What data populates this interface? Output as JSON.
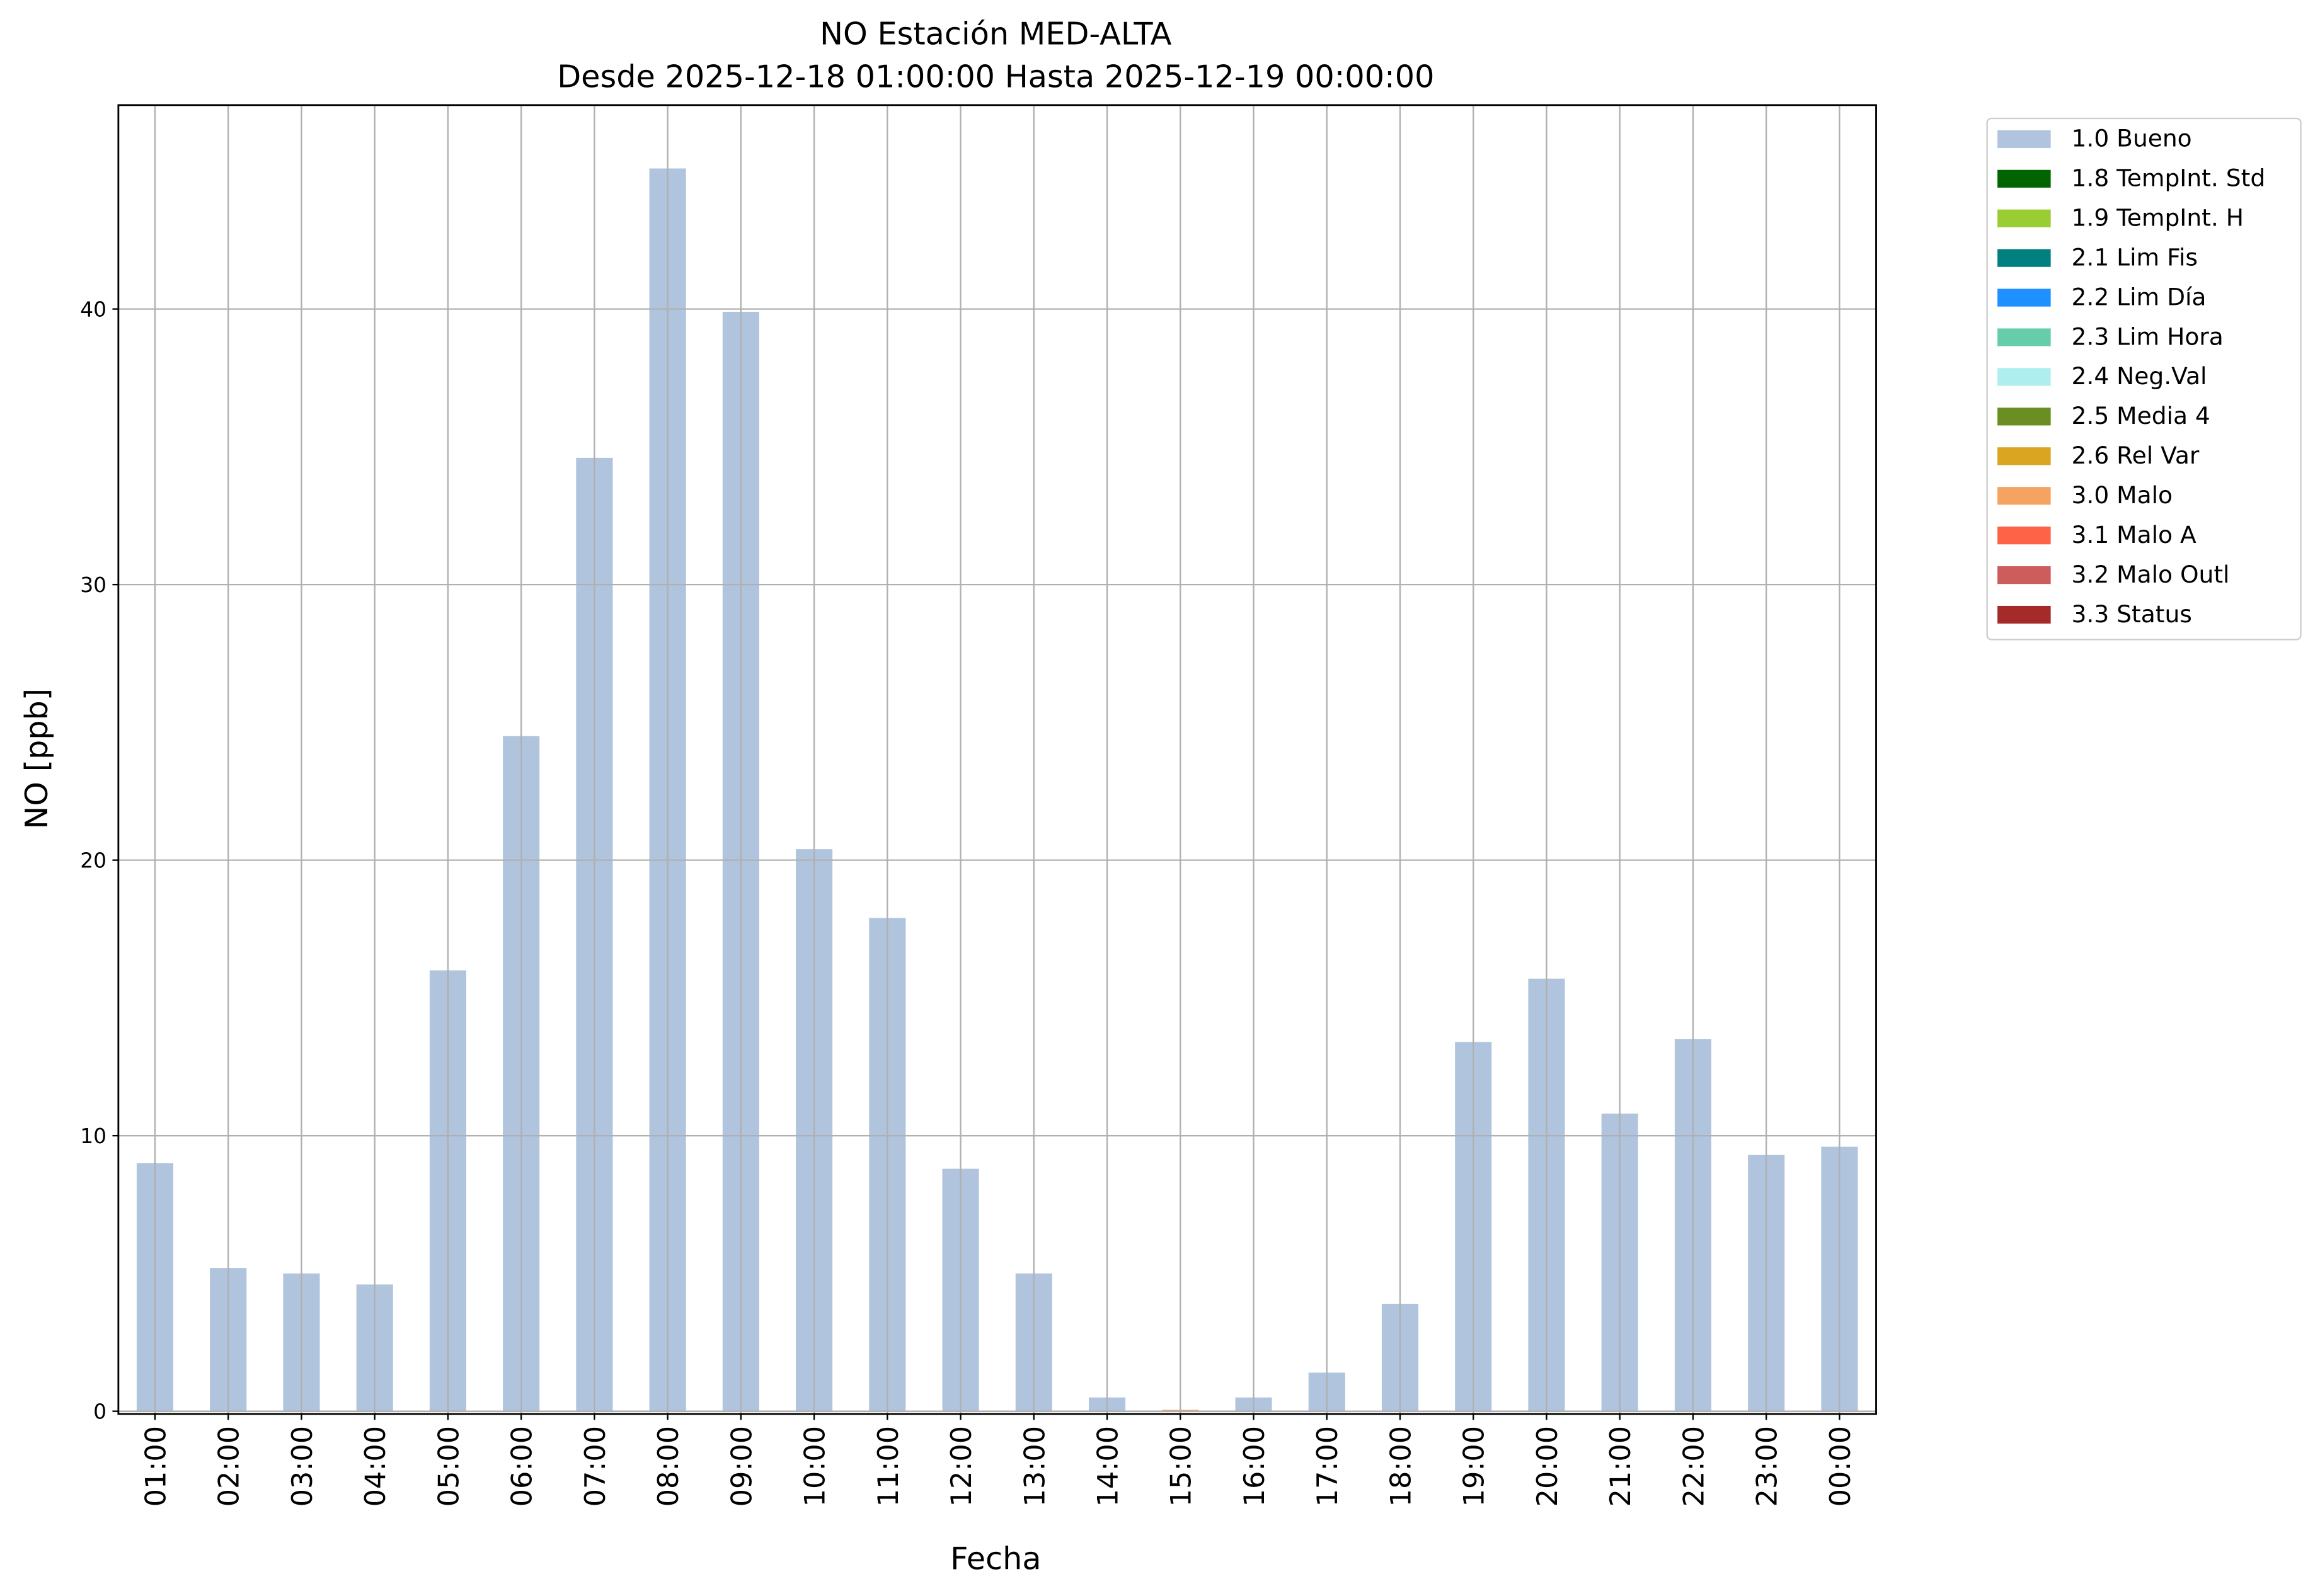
{
  "chart_data": {
    "type": "stacked_bar",
    "title": "NO Estación MED-ALTA",
    "subtitle": "Desde 2025-12-18 01:00:00 Hasta 2025-12-19 00:00:00",
    "x_label": "Fecha",
    "y_label": "NO [ppb]",
    "categories": [
      "01:00",
      "02:00",
      "03:00",
      "04:00",
      "05:00",
      "06:00",
      "07:00",
      "08:00",
      "09:00",
      "10:00",
      "11:00",
      "12:00",
      "13:00",
      "14:00",
      "15:00",
      "16:00",
      "17:00",
      "18:00",
      "19:00",
      "20:00",
      "21:00",
      "22:00",
      "23:00",
      "00:00"
    ],
    "series": [
      {
        "name": "1.0 Bueno",
        "color": "#b0c4de",
        "values": [
          9.0,
          5.2,
          5.0,
          4.6,
          16.0,
          24.5,
          34.6,
          45.1,
          39.9,
          20.4,
          17.9,
          8.8,
          5.0,
          0.5,
          null,
          0.5,
          1.4,
          3.9,
          13.4,
          15.7,
          10.8,
          13.5,
          9.3,
          9.6
        ]
      },
      {
        "name": "1.8 TempInt. Std",
        "color": "#006400",
        "values": [
          null,
          null,
          null,
          null,
          null,
          null,
          null,
          null,
          null,
          null,
          null,
          null,
          null,
          null,
          null,
          null,
          null,
          null,
          null,
          null,
          null,
          null,
          null,
          null
        ]
      },
      {
        "name": "1.9 TempInt. H",
        "color": "#9acd32",
        "values": [
          null,
          null,
          null,
          null,
          null,
          null,
          null,
          null,
          null,
          null,
          null,
          null,
          null,
          null,
          null,
          null,
          null,
          null,
          null,
          null,
          null,
          null,
          null,
          null
        ]
      },
      {
        "name": "2.1 Lim Fis",
        "color": "#008080",
        "values": [
          null,
          null,
          null,
          null,
          null,
          null,
          null,
          null,
          null,
          null,
          null,
          null,
          null,
          null,
          null,
          null,
          null,
          null,
          null,
          null,
          null,
          null,
          null,
          null
        ]
      },
      {
        "name": "2.2 Lim Día",
        "color": "#1e90ff",
        "values": [
          null,
          null,
          null,
          null,
          null,
          null,
          null,
          null,
          null,
          null,
          null,
          null,
          null,
          null,
          null,
          null,
          null,
          null,
          null,
          null,
          null,
          null,
          null,
          null
        ]
      },
      {
        "name": "2.3 Lim Hora",
        "color": "#66cdaa",
        "values": [
          null,
          null,
          null,
          null,
          null,
          null,
          null,
          null,
          null,
          null,
          null,
          null,
          null,
          null,
          null,
          null,
          null,
          null,
          null,
          null,
          null,
          null,
          null,
          null
        ]
      },
      {
        "name": "2.4 Neg.Val",
        "color": "#afeeee",
        "values": [
          null,
          null,
          null,
          null,
          null,
          null,
          null,
          null,
          null,
          null,
          null,
          null,
          null,
          null,
          null,
          null,
          null,
          null,
          null,
          null,
          null,
          null,
          null,
          null
        ]
      },
      {
        "name": "2.5 Media 4",
        "color": "#6b8e23",
        "values": [
          null,
          null,
          null,
          null,
          null,
          null,
          null,
          null,
          null,
          null,
          null,
          null,
          null,
          null,
          null,
          null,
          null,
          null,
          null,
          null,
          null,
          null,
          null,
          null
        ]
      },
      {
        "name": "2.6 Rel Var",
        "color": "#daa520",
        "values": [
          null,
          null,
          null,
          null,
          null,
          null,
          null,
          null,
          null,
          null,
          null,
          null,
          null,
          null,
          null,
          null,
          null,
          null,
          null,
          null,
          null,
          null,
          null,
          null
        ]
      },
      {
        "name": "3.0 Malo",
        "color": "#f4a460",
        "values": [
          null,
          null,
          null,
          null,
          null,
          null,
          null,
          null,
          null,
          null,
          null,
          null,
          null,
          null,
          0.05,
          null,
          null,
          null,
          null,
          null,
          null,
          null,
          null,
          null
        ]
      },
      {
        "name": "3.1 Malo A",
        "color": "#ff6347",
        "values": [
          null,
          null,
          null,
          null,
          null,
          null,
          null,
          null,
          null,
          null,
          null,
          null,
          null,
          null,
          null,
          null,
          null,
          null,
          null,
          null,
          null,
          null,
          null,
          null
        ]
      },
      {
        "name": "3.2 Malo Outl",
        "color": "#cd5c5c",
        "values": [
          null,
          null,
          null,
          null,
          null,
          null,
          null,
          null,
          null,
          null,
          null,
          null,
          null,
          null,
          null,
          null,
          null,
          null,
          null,
          null,
          null,
          null,
          null,
          null
        ]
      },
      {
        "name": "3.3 Status",
        "color": "#a52a2a",
        "values": [
          null,
          null,
          null,
          null,
          null,
          null,
          null,
          null,
          null,
          null,
          null,
          null,
          null,
          null,
          null,
          null,
          null,
          null,
          null,
          null,
          null,
          null,
          null,
          null
        ]
      }
    ],
    "ylim": [
      -0.1,
      47.4
    ],
    "yticks": [
      0,
      10,
      20,
      30,
      40
    ],
    "grid": true,
    "legend": "outside-upper-right"
  }
}
